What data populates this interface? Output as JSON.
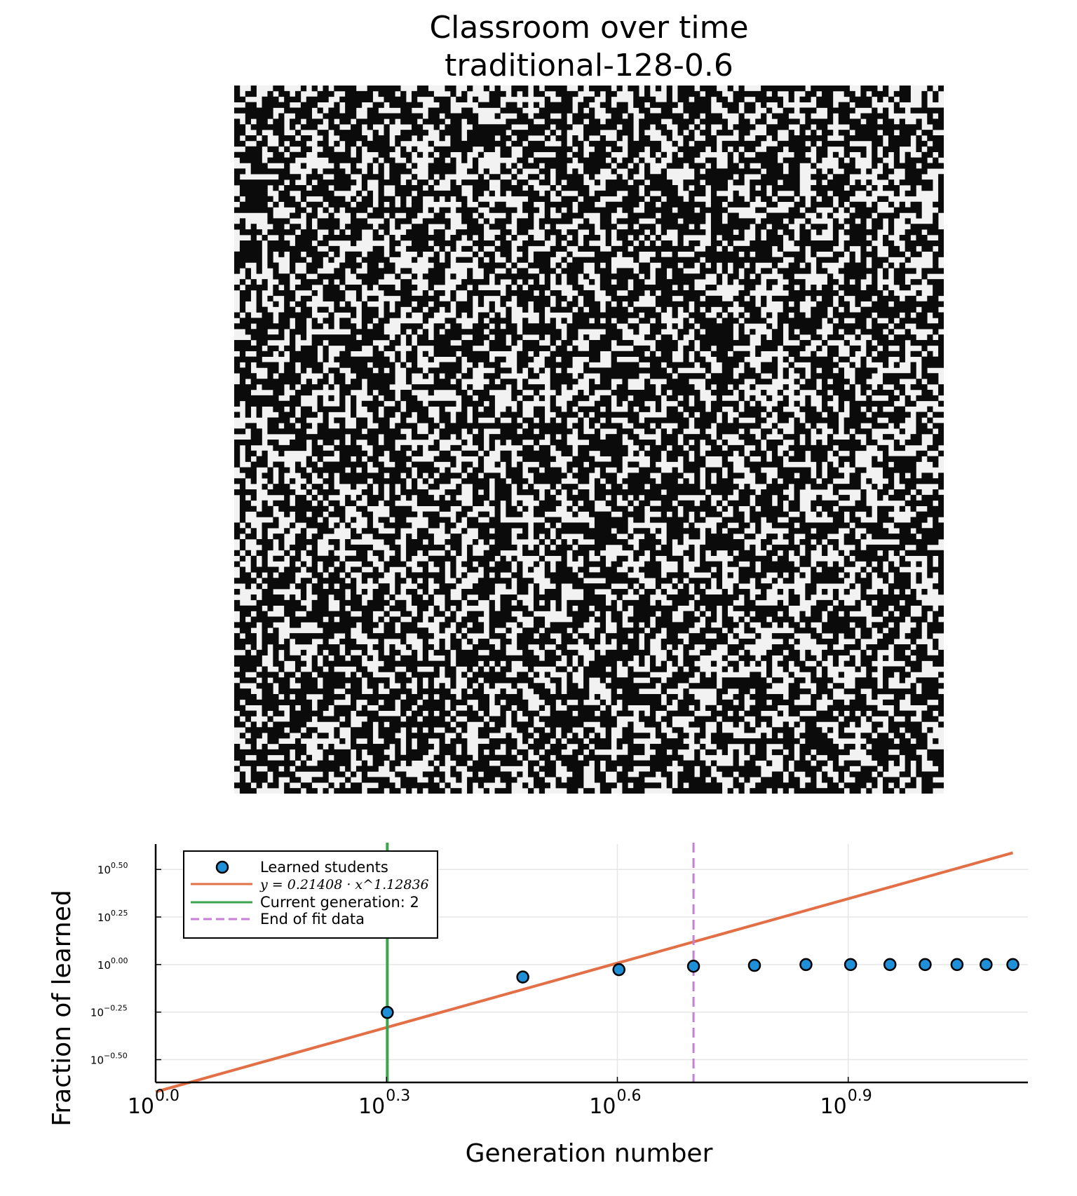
{
  "heatmap": {
    "title": "Classroom over time",
    "subtitle": "traditional-128-0.6",
    "grid_size": 128,
    "colors": {
      "learned": "#0b0b0b",
      "not_learned": "#f2f2f2"
    }
  },
  "chart_data": {
    "type": "scatter",
    "xlabel": "Generation number",
    "ylabel": "Fraction of learned",
    "x_scale": "log10",
    "y_scale": "log10",
    "xlim": [
      1,
      13.6
    ],
    "ylim": [
      0.24,
      4.3
    ],
    "x_ticks": [
      {
        "value": 1.0,
        "base": "10",
        "exp": "0.0"
      },
      {
        "value": 1.9953,
        "base": "10",
        "exp": "0.3"
      },
      {
        "value": 3.9811,
        "base": "10",
        "exp": "0.6"
      },
      {
        "value": 7.9433,
        "base": "10",
        "exp": "0.9"
      }
    ],
    "y_ticks": [
      {
        "value": 3.1623,
        "base": "10",
        "exp": "0.50"
      },
      {
        "value": 1.7783,
        "base": "10",
        "exp": "0.25"
      },
      {
        "value": 1.0,
        "base": "10",
        "exp": "0.00"
      },
      {
        "value": 0.5623,
        "base": "10",
        "exp": "−0.25"
      },
      {
        "value": 0.3162,
        "base": "10",
        "exp": "−0.50"
      }
    ],
    "grid": true,
    "legend_position": "top-left",
    "series": [
      {
        "name": "Learned students",
        "kind": "scatter",
        "color": "#1f8fd8",
        "x": [
          2,
          3,
          4,
          5,
          6,
          7,
          8,
          9,
          10,
          11,
          12,
          13
        ],
        "y": [
          0.56,
          0.86,
          0.94,
          0.98,
          0.99,
          1.0,
          1.0,
          1.0,
          1.0,
          1.0,
          1.0,
          1.0
        ]
      },
      {
        "name": "y = 0.21408 · x^1.12836",
        "kind": "line",
        "color": "#e26f46",
        "coefficient": 0.21408,
        "exponent": 1.12836
      },
      {
        "name": "Current generation: 2",
        "kind": "vline",
        "color": "#3ca44c",
        "x": 2
      },
      {
        "name": "End of fit data",
        "kind": "vline",
        "color": "#c77fd8",
        "dashed": true,
        "x": 5
      }
    ],
    "legend": {
      "entries": [
        "Learned students",
        "y = 0.21408 · x^1.12836",
        "Current generation: 2",
        "End of fit data"
      ]
    }
  }
}
